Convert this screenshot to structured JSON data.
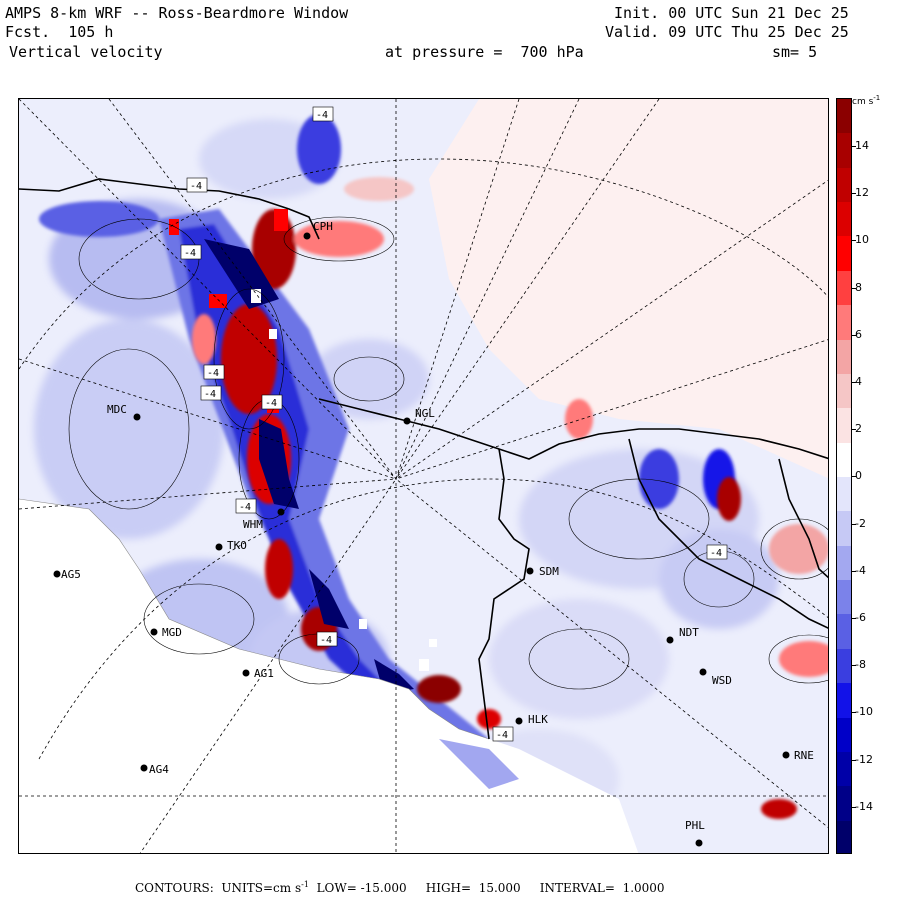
{
  "header": {
    "title": "AMPS 8-km WRF -- Ross-Beardmore Window",
    "forecast_label": "Fcst.",
    "forecast_value": "105 h",
    "field": "Vertical velocity",
    "init_label": "Init.",
    "init_value": "00 UTC Sun 21 Dec 25",
    "valid_label": "Valid.",
    "valid_value": "09 UTC Thu 25 Dec 25",
    "pressure_text": "at pressure =",
    "pressure_value": "700 hPa",
    "smoothing": "sm= 5"
  },
  "colorbar": {
    "units": "cm s",
    "units_exp": "-1",
    "ticks": [
      "14",
      "12",
      "10",
      "8",
      "6",
      "4",
      "2",
      "0",
      "-2",
      "-4",
      "-6",
      "-8",
      "-10",
      "-12",
      "-14"
    ],
    "colors": [
      "#8b0000",
      "#a80000",
      "#c00000",
      "#dc0000",
      "#ff0000",
      "#ff4040",
      "#ff7a7a",
      "#f3a5a5",
      "#f5c6c6",
      "#fbe3e3",
      "#ffffff",
      "#e3e5fb",
      "#c6c9f5",
      "#a3a8f0",
      "#7b82ea",
      "#5a60e4",
      "#3a3ee0",
      "#1212e8",
      "#0000c8",
      "#0000a8",
      "#000088",
      "#00006a"
    ]
  },
  "stations": [
    {
      "id": "CPH"
    },
    {
      "id": "MDC"
    },
    {
      "id": "NGL"
    },
    {
      "id": "WHM"
    },
    {
      "id": "TKO"
    },
    {
      "id": "AG5"
    },
    {
      "id": "SDM"
    },
    {
      "id": "MGD"
    },
    {
      "id": "NDT"
    },
    {
      "id": "AG1"
    },
    {
      "id": "WSD"
    },
    {
      "id": "HLK"
    },
    {
      "id": "AG4"
    },
    {
      "id": "RNE"
    },
    {
      "id": "PHL"
    }
  ],
  "contour_labels": [
    "-4",
    "-4",
    "-4",
    "-4",
    "-4",
    "-4",
    "-4",
    "-4",
    "-4",
    "-4"
  ],
  "footer": {
    "contours_label": "CONTOURS:",
    "units_text": "UNITS=cm s",
    "units_exp": "-1",
    "low_label": "LOW=",
    "low_value": "-15.000",
    "high_label": "HIGH=",
    "high_value": "15.000",
    "interval_label": "INTERVAL=",
    "interval_value": "1.0000"
  }
}
